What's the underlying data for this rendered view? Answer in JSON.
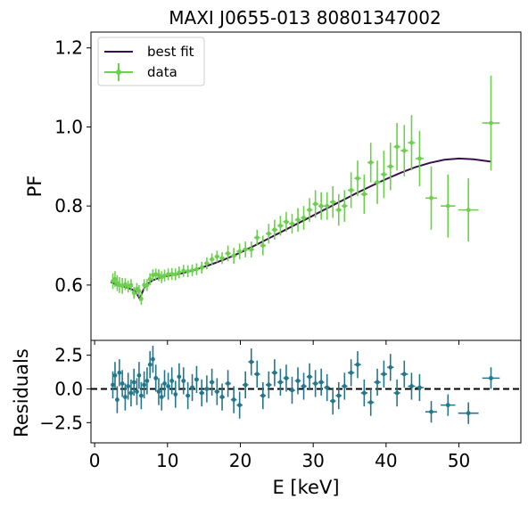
{
  "chart_data": [
    {
      "type": "scatter",
      "title": "MAXI J0655-013 80801347002",
      "xlabel": "",
      "ylabel": "PF",
      "xlim": [
        -0.5,
        58.5
      ],
      "ylim": [
        0.46,
        1.24
      ],
      "y_ticks": [
        0.6,
        0.8,
        1.0,
        1.2
      ],
      "y_tick_labels": [
        "0.6",
        "0.8",
        "1.0",
        "1.2"
      ],
      "legend_position": "top-left",
      "colors": {
        "model": "#3b0f4f",
        "data": "#6ccf4d"
      },
      "series": [
        {
          "name": "best fit",
          "kind": "line",
          "x": [
            2.2,
            3,
            4,
            5,
            5.5,
            6,
            6.2,
            6.5,
            7,
            8,
            9,
            10,
            12,
            14,
            16,
            18,
            20,
            22,
            24,
            26,
            28,
            30,
            32,
            34,
            36,
            38,
            40,
            42,
            44,
            46,
            48,
            50,
            52,
            54.5
          ],
          "y": [
            0.608,
            0.601,
            0.596,
            0.59,
            0.585,
            0.572,
            0.565,
            0.58,
            0.6,
            0.612,
            0.619,
            0.623,
            0.63,
            0.64,
            0.652,
            0.666,
            0.682,
            0.7,
            0.719,
            0.738,
            0.757,
            0.776,
            0.795,
            0.814,
            0.833,
            0.851,
            0.868,
            0.884,
            0.898,
            0.909,
            0.917,
            0.92,
            0.918,
            0.912
          ]
        },
        {
          "name": "data",
          "kind": "errorbar",
          "x": [
            2.5,
            2.8,
            3.1,
            3.4,
            3.8,
            4.2,
            4.6,
            5.0,
            5.4,
            5.8,
            6.1,
            6.4,
            6.8,
            7.2,
            7.6,
            8.0,
            8.4,
            8.8,
            9.2,
            9.6,
            10.1,
            10.6,
            11.1,
            11.6,
            12.2,
            12.8,
            13.4,
            14.0,
            14.7,
            15.4,
            16.1,
            16.8,
            17.5,
            18.3,
            19.1,
            19.9,
            20.7,
            21.5,
            22.3,
            23.1,
            23.9,
            24.7,
            25.5,
            26.3,
            27.1,
            27.9,
            28.7,
            29.5,
            30.3,
            31.1,
            31.9,
            32.7,
            33.5,
            34.3,
            35.2,
            36.1,
            37.0,
            37.9,
            38.8,
            39.7,
            40.6,
            41.5,
            42.5,
            43.5,
            44.6,
            46.2,
            48.5,
            51.3,
            54.4
          ],
          "y": [
            0.61,
            0.615,
            0.605,
            0.6,
            0.598,
            0.602,
            0.596,
            0.6,
            0.58,
            0.59,
            0.585,
            0.565,
            0.6,
            0.6,
            0.615,
            0.625,
            0.627,
            0.625,
            0.62,
            0.624,
            0.627,
            0.628,
            0.627,
            0.632,
            0.636,
            0.635,
            0.637,
            0.64,
            0.644,
            0.655,
            0.665,
            0.672,
            0.668,
            0.68,
            0.674,
            0.685,
            0.69,
            0.69,
            0.72,
            0.7,
            0.73,
            0.74,
            0.75,
            0.76,
            0.755,
            0.765,
            0.77,
            0.79,
            0.805,
            0.8,
            0.8,
            0.81,
            0.79,
            0.8,
            0.84,
            0.87,
            0.83,
            0.91,
            0.86,
            0.88,
            0.9,
            0.95,
            0.94,
            0.96,
            0.92,
            0.82,
            0.8,
            0.79,
            1.01
          ],
          "yerr": [
            0.02,
            0.02,
            0.02,
            0.02,
            0.02,
            0.015,
            0.015,
            0.015,
            0.015,
            0.015,
            0.015,
            0.015,
            0.015,
            0.015,
            0.015,
            0.015,
            0.015,
            0.015,
            0.015,
            0.015,
            0.015,
            0.015,
            0.015,
            0.015,
            0.015,
            0.015,
            0.015,
            0.015,
            0.015,
            0.015,
            0.015,
            0.015,
            0.015,
            0.02,
            0.02,
            0.02,
            0.02,
            0.02,
            0.02,
            0.025,
            0.025,
            0.025,
            0.025,
            0.025,
            0.025,
            0.03,
            0.03,
            0.03,
            0.035,
            0.035,
            0.035,
            0.04,
            0.04,
            0.04,
            0.045,
            0.045,
            0.05,
            0.05,
            0.055,
            0.06,
            0.06,
            0.06,
            0.065,
            0.07,
            0.07,
            0.08,
            0.08,
            0.08,
            0.12
          ],
          "xerr": [
            0.15,
            0.15,
            0.15,
            0.15,
            0.2,
            0.2,
            0.2,
            0.2,
            0.2,
            0.2,
            0.15,
            0.15,
            0.2,
            0.2,
            0.2,
            0.2,
            0.2,
            0.2,
            0.2,
            0.2,
            0.25,
            0.25,
            0.25,
            0.25,
            0.3,
            0.3,
            0.3,
            0.3,
            0.35,
            0.35,
            0.35,
            0.35,
            0.35,
            0.4,
            0.4,
            0.4,
            0.4,
            0.4,
            0.4,
            0.4,
            0.4,
            0.4,
            0.4,
            0.4,
            0.4,
            0.4,
            0.4,
            0.4,
            0.4,
            0.4,
            0.4,
            0.4,
            0.4,
            0.4,
            0.45,
            0.45,
            0.45,
            0.45,
            0.45,
            0.45,
            0.45,
            0.45,
            0.5,
            0.5,
            0.55,
            0.8,
            1.0,
            1.4,
            1.2
          ]
        }
      ]
    },
    {
      "type": "scatter",
      "title": "",
      "xlabel": "E [keV]",
      "ylabel": "Residuals",
      "xlim": [
        -0.5,
        58.5
      ],
      "ylim": [
        -4.0,
        3.6
      ],
      "x_ticks": [
        0,
        10,
        20,
        30,
        40,
        50
      ],
      "x_tick_labels": [
        "0",
        "10",
        "20",
        "30",
        "40",
        "50"
      ],
      "y_ticks": [
        -2.5,
        0.0,
        2.5
      ],
      "y_tick_labels": [
        "−2.5",
        "0.0",
        "2.5"
      ],
      "zero_line": {
        "y": 0,
        "style": "dashed",
        "color": "#000000"
      },
      "colors": {
        "data": "#24778a"
      },
      "series": [
        {
          "name": "residuals",
          "kind": "errorbar",
          "x": [
            2.5,
            2.8,
            3.1,
            3.4,
            3.8,
            4.2,
            4.6,
            5.0,
            5.4,
            5.8,
            6.1,
            6.4,
            6.8,
            7.2,
            7.6,
            8.0,
            8.4,
            8.8,
            9.2,
            9.6,
            10.1,
            10.6,
            11.1,
            11.6,
            12.2,
            12.8,
            13.4,
            14.0,
            14.7,
            15.4,
            16.1,
            16.8,
            17.5,
            18.3,
            19.1,
            19.9,
            20.7,
            21.5,
            22.3,
            23.1,
            23.9,
            24.7,
            25.5,
            26.3,
            27.1,
            27.9,
            28.7,
            29.5,
            30.3,
            31.1,
            31.9,
            32.7,
            33.5,
            34.3,
            35.2,
            36.1,
            37.0,
            37.9,
            38.8,
            39.7,
            40.6,
            41.5,
            42.5,
            43.5,
            44.6,
            46.2,
            48.5,
            51.3,
            54.4
          ],
          "y": [
            0.3,
            1.0,
            -0.8,
            1.2,
            0.4,
            -0.6,
            0.2,
            -0.3,
            0.5,
            -0.2,
            1.0,
            -0.5,
            0.3,
            0.6,
            1.8,
            2.2,
            0.8,
            -0.2,
            -0.6,
            0.4,
            0.2,
            0.6,
            -0.4,
            0.9,
            0.6,
            -0.5,
            0.1,
            0.7,
            -0.3,
            0.0,
            0.5,
            -0.2,
            -0.6,
            0.4,
            -0.8,
            -1.2,
            0.3,
            2.0,
            1.1,
            -0.5,
            0.3,
            1.2,
            0.5,
            0.8,
            -0.1,
            0.6,
            0.2,
            0.9,
            0.4,
            0.5,
            0.1,
            -0.9,
            -0.5,
            0.2,
            1.2,
            1.8,
            -0.3,
            -1.0,
            0.5,
            1.1,
            1.6,
            -0.3,
            1.1,
            0.2,
            0.1,
            -1.7,
            -1.2,
            -1.8,
            0.8
          ],
          "yerr": [
            1.0,
            1.0,
            1.0,
            1.0,
            1.0,
            1.0,
            1.0,
            1.0,
            1.0,
            1.0,
            1.0,
            1.0,
            1.0,
            1.0,
            1.0,
            1.0,
            1.0,
            1.0,
            1.0,
            1.0,
            1.0,
            1.0,
            1.0,
            1.0,
            1.0,
            1.0,
            1.0,
            1.0,
            1.0,
            1.0,
            1.0,
            1.0,
            1.0,
            1.0,
            1.0,
            1.0,
            1.0,
            1.0,
            1.0,
            1.0,
            1.0,
            1.0,
            1.0,
            1.0,
            1.0,
            1.0,
            1.0,
            1.0,
            1.0,
            1.0,
            1.0,
            1.0,
            1.0,
            1.0,
            1.0,
            1.0,
            1.0,
            1.0,
            1.0,
            1.0,
            1.0,
            1.0,
            1.0,
            1.0,
            1.0,
            0.8,
            0.8,
            0.8,
            0.8
          ],
          "xerr": [
            0.15,
            0.15,
            0.15,
            0.15,
            0.2,
            0.2,
            0.2,
            0.2,
            0.2,
            0.2,
            0.15,
            0.15,
            0.2,
            0.2,
            0.2,
            0.2,
            0.2,
            0.2,
            0.2,
            0.2,
            0.25,
            0.25,
            0.25,
            0.25,
            0.3,
            0.3,
            0.3,
            0.3,
            0.35,
            0.35,
            0.35,
            0.35,
            0.35,
            0.4,
            0.4,
            0.4,
            0.4,
            0.4,
            0.4,
            0.4,
            0.4,
            0.4,
            0.4,
            0.4,
            0.4,
            0.4,
            0.4,
            0.4,
            0.4,
            0.4,
            0.4,
            0.4,
            0.4,
            0.4,
            0.45,
            0.45,
            0.45,
            0.45,
            0.45,
            0.45,
            0.45,
            0.45,
            0.5,
            0.5,
            0.55,
            0.8,
            1.0,
            1.4,
            1.2
          ]
        }
      ]
    }
  ]
}
